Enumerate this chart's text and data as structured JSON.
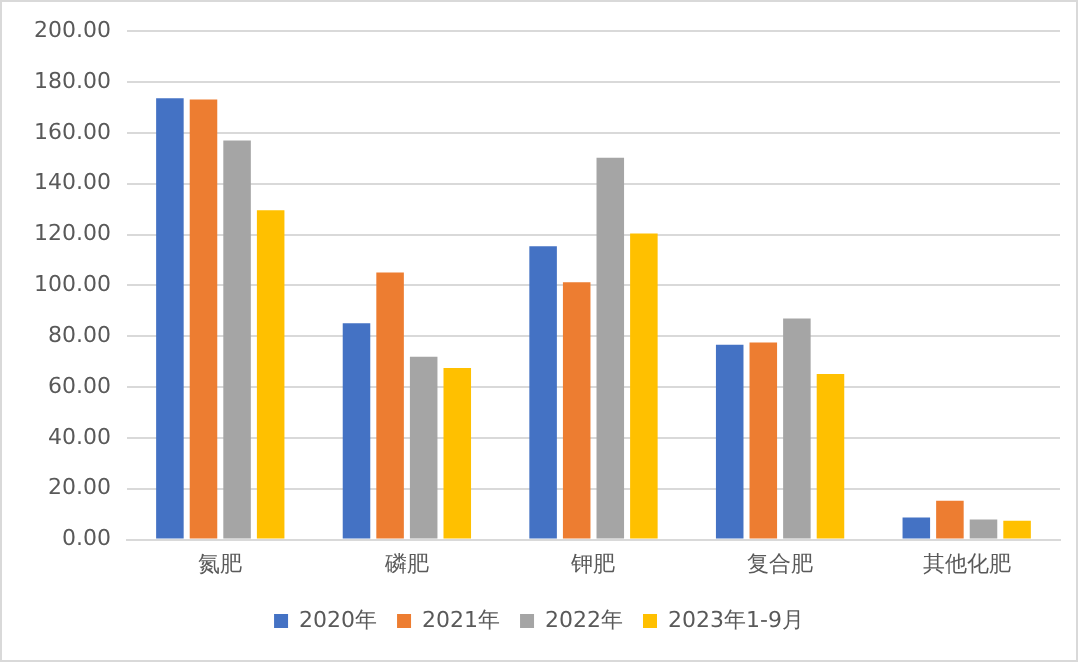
{
  "chart_data": {
    "type": "bar",
    "categories": [
      "氮肥",
      "磷肥",
      "钾肥",
      "复合肥",
      "其他化肥"
    ],
    "series": [
      {
        "name": "2020年",
        "color": "#4472c4",
        "values": [
          173.6,
          85.1,
          115.4,
          76.7,
          8.7
        ]
      },
      {
        "name": "2021年",
        "color": "#ed7d31",
        "values": [
          173.1,
          105.1,
          101.2,
          77.5,
          15.3
        ]
      },
      {
        "name": "2022年",
        "color": "#a5a5a5",
        "values": [
          157.0,
          71.9,
          150.2,
          87.0,
          7.9
        ]
      },
      {
        "name": "2023年1-9月",
        "color": "#ffc000",
        "values": [
          129.6,
          67.5,
          120.4,
          65.1,
          7.4
        ]
      }
    ],
    "ylim": [
      0,
      200
    ],
    "yticks": [
      {
        "value": 0,
        "label": "0.00"
      },
      {
        "value": 20,
        "label": "20.00"
      },
      {
        "value": 40,
        "label": "40.00"
      },
      {
        "value": 60,
        "label": "60.00"
      },
      {
        "value": 80,
        "label": "80.00"
      },
      {
        "value": 100,
        "label": "100.00"
      },
      {
        "value": 120,
        "label": "120.00"
      },
      {
        "value": 140,
        "label": "140.00"
      },
      {
        "value": 160,
        "label": "160.00"
      },
      {
        "value": 180,
        "label": "180.00"
      },
      {
        "value": 200,
        "label": "200.00"
      }
    ],
    "grid": "y",
    "legend": "bottom"
  }
}
